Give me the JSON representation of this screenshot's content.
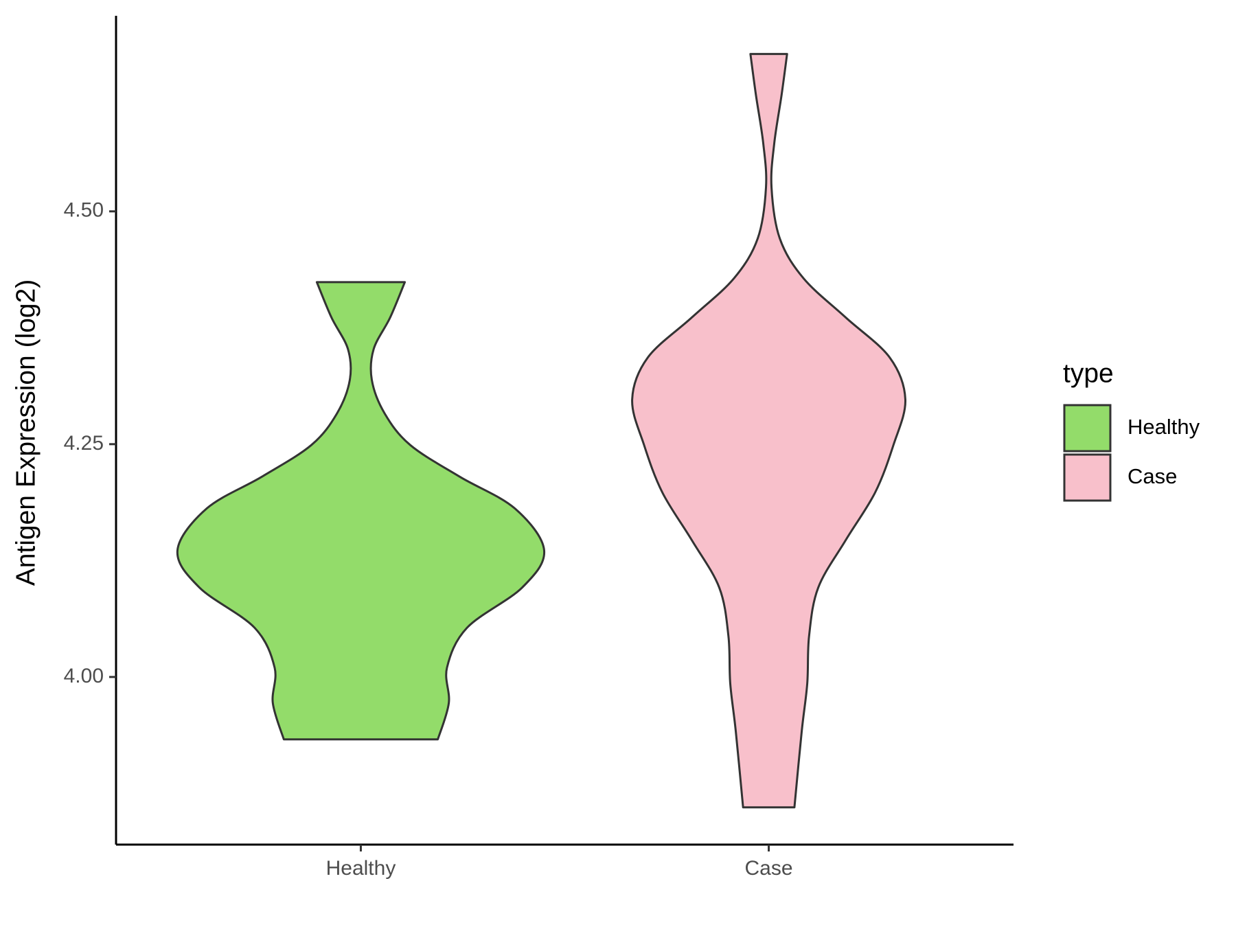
{
  "chart_data": {
    "type": "violin",
    "y_label": "Antigen Expression (log2)",
    "categories": [
      "Healthy",
      "Case"
    ],
    "legend_title": "type",
    "legend_position": "right",
    "ylim": [
      3.82,
      4.71
    ],
    "yticks": [
      {
        "value": 4.0,
        "label": "4.00"
      },
      {
        "value": 4.25,
        "label": "4.25"
      },
      {
        "value": 4.5,
        "label": "4.50"
      }
    ],
    "series": [
      {
        "name": "Healthy",
        "color": "#93dc6a",
        "y": [
          4.424,
          4.386,
          4.352,
          4.319,
          4.283,
          4.249,
          4.215,
          4.181,
          4.136,
          4.096,
          4.053,
          4.01,
          3.972,
          3.933
        ],
        "density": [
          0.24,
          0.16,
          0.07,
          0.06,
          0.13,
          0.27,
          0.54,
          0.84,
          1.0,
          0.88,
          0.58,
          0.47,
          0.48,
          0.42
        ]
      },
      {
        "name": "Case",
        "color": "#f8c0cb",
        "y": [
          4.669,
          4.625,
          4.573,
          4.526,
          4.471,
          4.428,
          4.386,
          4.343,
          4.298,
          4.249,
          4.198,
          4.147,
          4.096,
          4.044,
          3.993,
          3.942,
          3.86
        ],
        "density": [
          0.1,
          0.07,
          0.03,
          0.015,
          0.06,
          0.19,
          0.42,
          0.66,
          0.745,
          0.68,
          0.58,
          0.42,
          0.27,
          0.22,
          0.21,
          0.18,
          0.14
        ]
      }
    ]
  }
}
